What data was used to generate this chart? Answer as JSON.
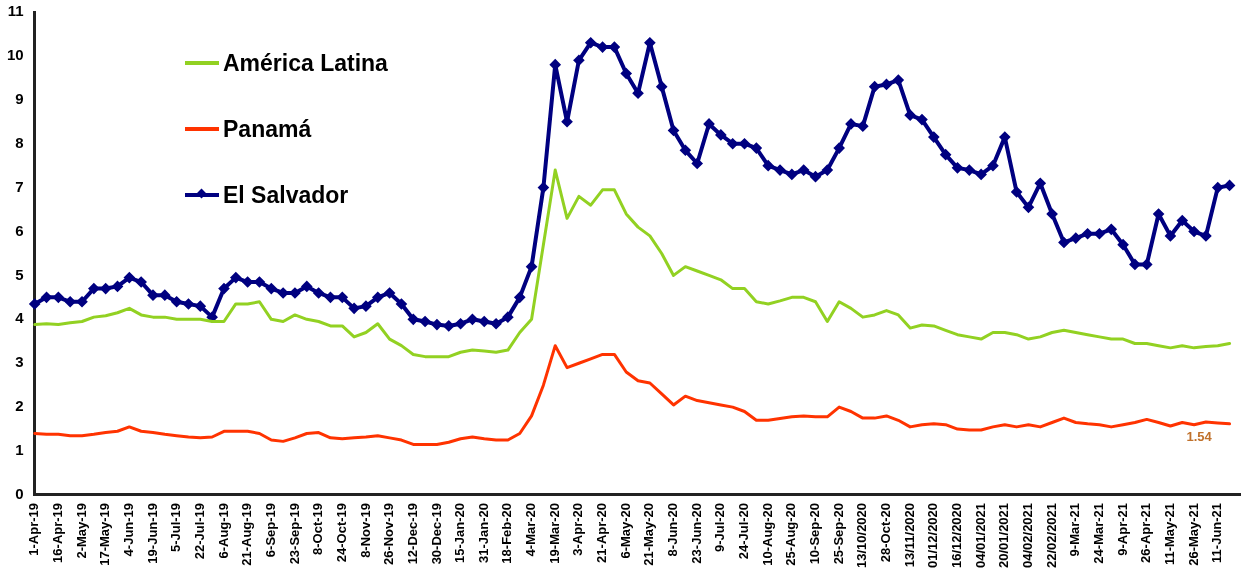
{
  "chart_data": {
    "type": "line",
    "categories": [
      "1-Apr-19",
      null,
      "16-Apr-19",
      null,
      "2-May-19",
      null,
      "17-May-19",
      null,
      "4-Jun-19",
      null,
      "19-Jun-19",
      null,
      "5-Jul-19",
      null,
      "22-Jul-19",
      null,
      "6-Aug-19",
      null,
      "21-Aug-19",
      null,
      "6-Sep-19",
      null,
      "23-Sep-19",
      null,
      "8-Oct-19",
      null,
      "24-Oct-19",
      null,
      "8-Nov-19",
      null,
      "26-Nov-19",
      null,
      "12-Dec-19",
      null,
      "30-Dec-19",
      null,
      "15-Jan-20",
      null,
      "31-Jan-20",
      null,
      "18-Feb-20",
      null,
      "4-Mar-20",
      null,
      "19-Mar-20",
      null,
      "3-Apr-20",
      null,
      "21-Apr-20",
      null,
      "6-May-20",
      null,
      "21-May-20",
      null,
      "8-Jun-20",
      null,
      "23-Jun-20",
      null,
      "9-Jul-20",
      null,
      "24-Jul-20",
      null,
      "10-Aug-20",
      null,
      "25-Aug-20",
      null,
      "10-Sep-20",
      null,
      "25-Sep-20",
      null,
      "13/10/2020",
      null,
      "28-Oct-20",
      null,
      "13/11/2020",
      null,
      "01/12/2020",
      null,
      "16/12/2020",
      null,
      "04/01/2021",
      null,
      "20/01/2021",
      null,
      "04/02/2021",
      null,
      "22/02/2021",
      null,
      "9-Mar-21",
      null,
      "24-Mar-21",
      null,
      "9-Apr-21",
      null,
      "26-Apr-21",
      null,
      "11-May-21",
      null,
      "26-May-21",
      null,
      "11-Jun-21",
      null,
      null
    ],
    "series": [
      {
        "name": "América Latina",
        "color": "#92d122",
        "marker": "none",
        "values": [
          3.88,
          3.9,
          3.88,
          3.92,
          3.95,
          4.05,
          4.08,
          4.15,
          4.25,
          4.1,
          4.05,
          4.05,
          4.0,
          4.0,
          4.0,
          3.95,
          3.95,
          4.35,
          4.35,
          4.4,
          4.0,
          3.95,
          4.1,
          4.0,
          3.95,
          3.85,
          3.85,
          3.6,
          3.7,
          3.9,
          3.55,
          3.4,
          3.2,
          3.15,
          3.15,
          3.15,
          3.25,
          3.3,
          3.28,
          3.25,
          3.3,
          3.7,
          4.0,
          5.7,
          7.4,
          6.3,
          6.8,
          6.6,
          6.95,
          6.95,
          6.4,
          6.1,
          5.9,
          5.5,
          5.0,
          5.2,
          5.1,
          5.0,
          4.9,
          4.7,
          4.7,
          4.4,
          4.35,
          4.42,
          4.5,
          4.5,
          4.4,
          3.95,
          4.4,
          4.25,
          4.05,
          4.1,
          4.2,
          4.1,
          3.8,
          3.87,
          3.85,
          3.75,
          3.65,
          3.6,
          3.55,
          3.7,
          3.7,
          3.65,
          3.55,
          3.6,
          3.7,
          3.75,
          3.7,
          3.65,
          3.6,
          3.55,
          3.55,
          3.45,
          3.45,
          3.4,
          3.35,
          3.4,
          3.35,
          3.38,
          3.4,
          3.45,
          null
        ]
      },
      {
        "name": "Panamá",
        "color": "#ff3300",
        "marker": "none",
        "values": [
          1.4,
          1.38,
          1.38,
          1.35,
          1.35,
          1.38,
          1.42,
          1.45,
          1.55,
          1.45,
          1.42,
          1.38,
          1.35,
          1.32,
          1.3,
          1.32,
          1.45,
          1.45,
          1.45,
          1.4,
          1.25,
          1.22,
          1.3,
          1.4,
          1.42,
          1.3,
          1.28,
          1.3,
          1.32,
          1.35,
          1.3,
          1.25,
          1.15,
          1.15,
          1.15,
          1.2,
          1.28,
          1.32,
          1.28,
          1.25,
          1.25,
          1.4,
          1.8,
          2.5,
          3.4,
          2.9,
          3.0,
          3.1,
          3.2,
          3.2,
          2.8,
          2.6,
          2.55,
          2.3,
          2.05,
          2.25,
          2.15,
          2.1,
          2.05,
          2.0,
          1.9,
          1.7,
          1.7,
          1.74,
          1.78,
          1.8,
          1.78,
          1.78,
          2.0,
          1.9,
          1.75,
          1.75,
          1.8,
          1.7,
          1.55,
          1.6,
          1.62,
          1.6,
          1.5,
          1.48,
          1.48,
          1.55,
          1.6,
          1.55,
          1.6,
          1.55,
          1.65,
          1.75,
          1.65,
          1.62,
          1.6,
          1.55,
          1.6,
          1.65,
          1.72,
          1.65,
          1.57,
          1.65,
          1.6,
          1.66,
          1.64,
          1.62,
          null
        ]
      },
      {
        "name": "El Salvador",
        "color": "#000080",
        "marker": "diamond",
        "values": [
          4.35,
          4.5,
          4.5,
          4.4,
          4.4,
          4.7,
          4.7,
          4.75,
          4.95,
          4.85,
          4.55,
          4.55,
          4.4,
          4.35,
          4.3,
          4.05,
          4.7,
          4.95,
          4.85,
          4.85,
          4.7,
          4.6,
          4.6,
          4.75,
          4.6,
          4.5,
          4.5,
          4.25,
          4.3,
          4.5,
          4.6,
          4.35,
          4.0,
          3.95,
          3.88,
          3.85,
          3.9,
          4.0,
          3.95,
          3.9,
          4.05,
          4.5,
          5.2,
          7.0,
          9.8,
          8.5,
          9.9,
          10.3,
          10.2,
          10.2,
          9.6,
          9.15,
          10.3,
          9.3,
          8.3,
          7.85,
          7.55,
          8.45,
          8.2,
          8.0,
          8.0,
          7.9,
          7.5,
          7.4,
          7.3,
          7.4,
          7.25,
          7.4,
          7.9,
          8.45,
          8.4,
          9.3,
          9.35,
          9.45,
          8.65,
          8.55,
          8.15,
          7.75,
          7.45,
          7.4,
          7.3,
          7.5,
          8.15,
          6.9,
          6.55,
          7.1,
          6.4,
          5.75,
          5.85,
          5.95,
          5.95,
          6.05,
          5.7,
          5.25,
          5.25,
          6.4,
          5.9,
          6.25,
          6.0,
          5.9,
          7.0,
          7.05,
          null
        ]
      }
    ],
    "ylim": [
      0,
      11
    ],
    "yticks": [
      0,
      1,
      2,
      3,
      4,
      5,
      6,
      7,
      8,
      9,
      10,
      11
    ],
    "grid": false,
    "legend": "top left",
    "annotations": [
      {
        "text": "1.54",
        "x": "11-Jun-21",
        "y": 1.54
      }
    ]
  }
}
